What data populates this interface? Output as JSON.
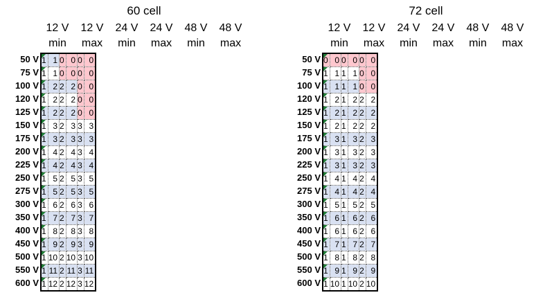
{
  "left": {
    "title": "60 cell",
    "col_top": [
      "12 V",
      "12 V",
      "24 V",
      "24 V",
      "48 V",
      "48 V"
    ],
    "col_bottom": [
      "min",
      "max",
      "min",
      "max",
      "min",
      "max"
    ],
    "row_labels": [
      "50 V",
      "75 V",
      "100 V",
      "120 V",
      "125 V",
      "150 V",
      "175 V",
      "200 V",
      "225 V",
      "250 V",
      "275 V",
      "300 V",
      "350 V",
      "400 V",
      "450 V",
      "500 V",
      "550 V",
      "600 V"
    ],
    "rows": [
      [
        "1",
        "1",
        "0",
        "0",
        "0",
        "0"
      ],
      [
        "1",
        "1",
        "0",
        "0",
        "0",
        "0"
      ],
      [
        "1",
        "2",
        "2",
        "2",
        "0",
        "0"
      ],
      [
        "1",
        "2",
        "2",
        "2",
        "0",
        "0"
      ],
      [
        "1",
        "2",
        "2",
        "2",
        "0",
        "0"
      ],
      [
        "1",
        "3",
        "2",
        "3",
        "3",
        "3"
      ],
      [
        "1",
        "3",
        "2",
        "3",
        "3",
        "3"
      ],
      [
        "1",
        "4",
        "2",
        "4",
        "3",
        "4"
      ],
      [
        "1",
        "4",
        "2",
        "4",
        "3",
        "4"
      ],
      [
        "1",
        "5",
        "2",
        "5",
        "3",
        "5"
      ],
      [
        "1",
        "5",
        "2",
        "5",
        "3",
        "5"
      ],
      [
        "1",
        "6",
        "2",
        "6",
        "3",
        "6"
      ],
      [
        "1",
        "7",
        "2",
        "7",
        "3",
        "7"
      ],
      [
        "1",
        "8",
        "2",
        "8",
        "3",
        "8"
      ],
      [
        "1",
        "9",
        "2",
        "9",
        "3",
        "9"
      ],
      [
        "1",
        "10",
        "2",
        "10",
        "3",
        "10"
      ],
      [
        "1",
        "11",
        "2",
        "11",
        "3",
        "11"
      ],
      [
        "1",
        "12",
        "2",
        "12",
        "3",
        "12"
      ]
    ]
  },
  "right": {
    "title": "72 cell",
    "col_top": [
      "12 V",
      "12 V",
      "24 V",
      "24 V",
      "48 V",
      "48 V"
    ],
    "col_bottom": [
      "min",
      "max",
      "min",
      "max",
      "min",
      "max"
    ],
    "row_labels": [
      "50 V",
      "75 V",
      "100 V",
      "120 V",
      "125 V",
      "150 V",
      "175 V",
      "200 V",
      "225 V",
      "250 V",
      "275 V",
      "300 V",
      "350 V",
      "400 V",
      "450 V",
      "500 V",
      "550 V",
      "600 V"
    ],
    "rows": [
      [
        "0",
        "0",
        "0",
        "0",
        "0",
        "0"
      ],
      [
        "1",
        "1",
        "1",
        "1",
        "0",
        "0"
      ],
      [
        "1",
        "1",
        "1",
        "1",
        "0",
        "0"
      ],
      [
        "1",
        "2",
        "1",
        "2",
        "2",
        "2"
      ],
      [
        "1",
        "2",
        "1",
        "2",
        "2",
        "2"
      ],
      [
        "1",
        "2",
        "1",
        "2",
        "2",
        "2"
      ],
      [
        "1",
        "3",
        "1",
        "3",
        "2",
        "3"
      ],
      [
        "1",
        "3",
        "1",
        "3",
        "2",
        "3"
      ],
      [
        "1",
        "3",
        "1",
        "3",
        "2",
        "3"
      ],
      [
        "1",
        "4",
        "1",
        "4",
        "2",
        "4"
      ],
      [
        "1",
        "4",
        "1",
        "4",
        "2",
        "4"
      ],
      [
        "1",
        "5",
        "1",
        "5",
        "2",
        "5"
      ],
      [
        "1",
        "6",
        "1",
        "6",
        "2",
        "6"
      ],
      [
        "1",
        "6",
        "1",
        "6",
        "2",
        "6"
      ],
      [
        "1",
        "7",
        "1",
        "7",
        "2",
        "7"
      ],
      [
        "1",
        "8",
        "1",
        "8",
        "2",
        "8"
      ],
      [
        "1",
        "9",
        "1",
        "9",
        "2",
        "9"
      ],
      [
        "1",
        "10",
        "1",
        "10",
        "2",
        "10"
      ]
    ]
  },
  "colors": {
    "band": "#d9e1f2",
    "zero_highlight": "#ffc7ce",
    "indicator": "#1e7b34"
  }
}
